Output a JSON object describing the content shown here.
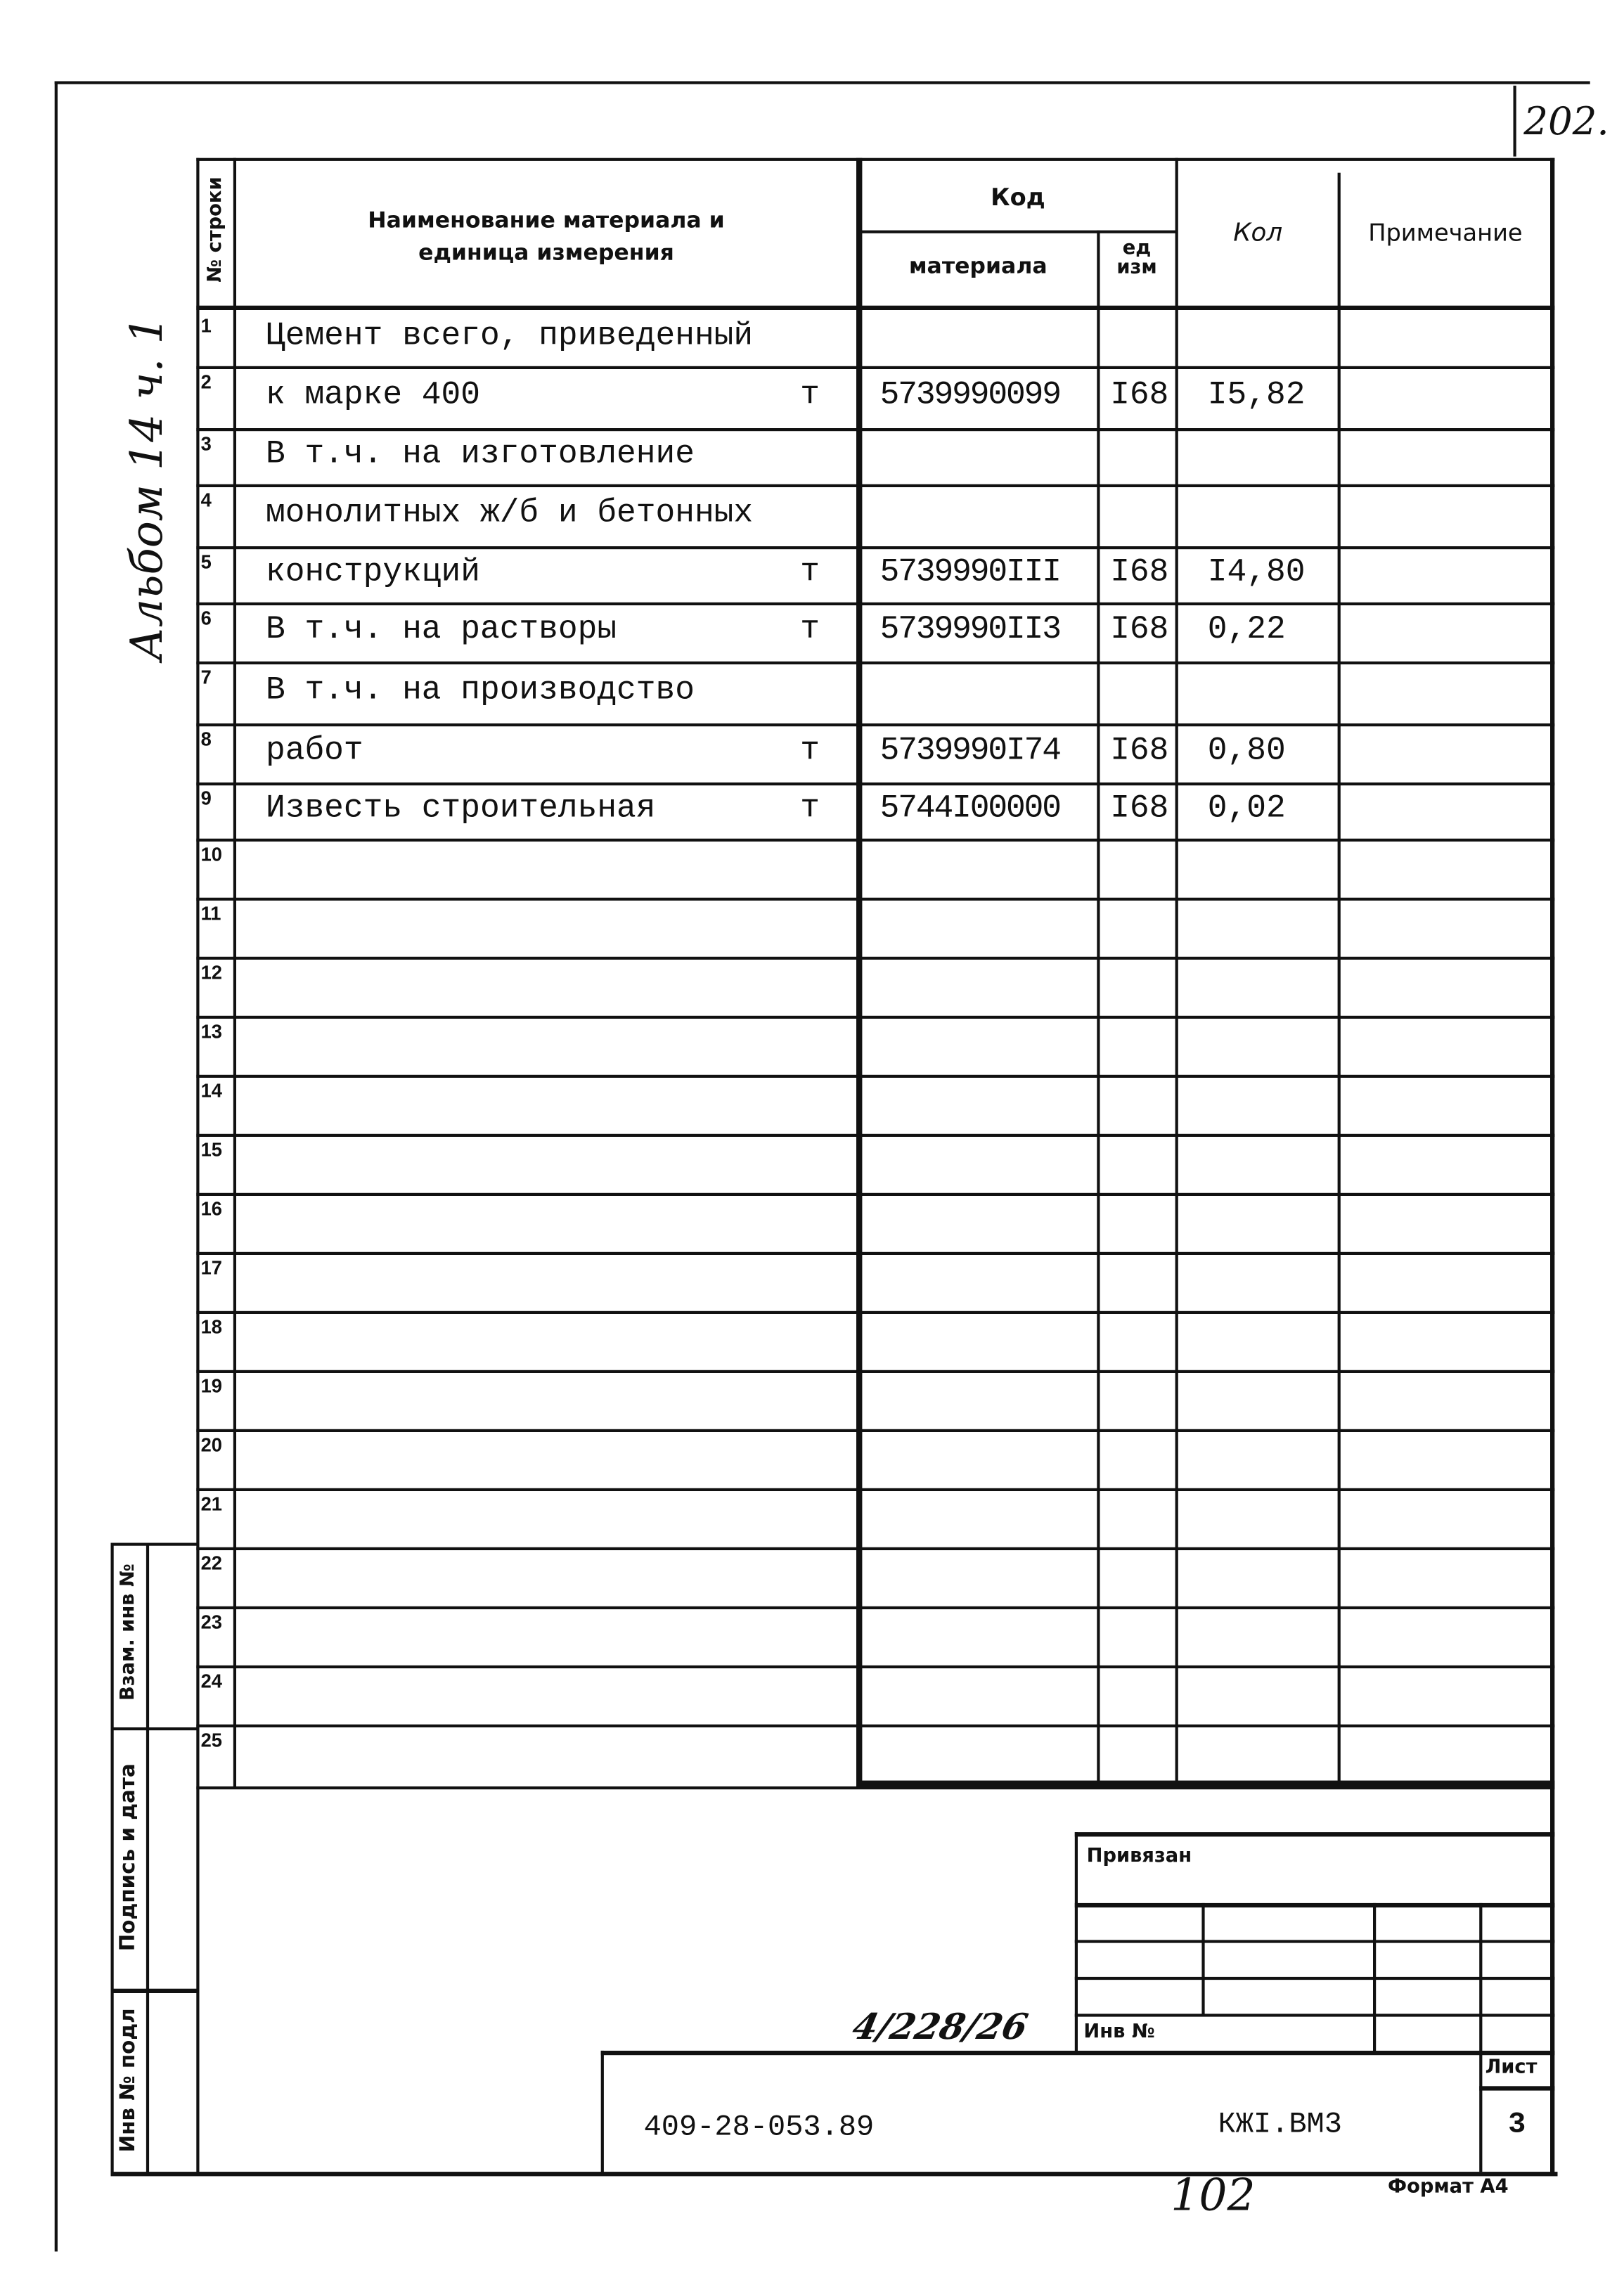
{
  "page_number": "202.",
  "side_handwriting": "Альбом 14 ч. 1",
  "header": {
    "row_no": "№ строки",
    "name": "Наименование материала и",
    "name2": "единица измерения",
    "code": "Код",
    "material": "материала",
    "unit_code": "ед изм",
    "qty": "Кол",
    "note": "Примечание"
  },
  "rows": [
    {
      "n": "1",
      "name": "Цемент всего, приведенный",
      "unit": "",
      "code": "",
      "ed": "",
      "qty": ""
    },
    {
      "n": "2",
      "name": "к марке 400",
      "unit": "т",
      "code": "5739990099",
      "ed": "I68",
      "qty": "I5,82"
    },
    {
      "n": "3",
      "name": "В т.ч. на изготовление",
      "unit": "",
      "code": "",
      "ed": "",
      "qty": ""
    },
    {
      "n": "4",
      "name": "монолитных ж/б и бетонных",
      "unit": "",
      "code": "",
      "ed": "",
      "qty": ""
    },
    {
      "n": "5",
      "name": "конструкций",
      "unit": "т",
      "code": "5739990III",
      "ed": "I68",
      "qty": "I4,80"
    },
    {
      "n": "6",
      "name": "В т.ч. на растворы",
      "unit": "т",
      "code": "5739990II3",
      "ed": "I68",
      "qty": "0,22"
    },
    {
      "n": "7",
      "name": "В т.ч. на производство",
      "unit": "",
      "code": "",
      "ed": "",
      "qty": ""
    },
    {
      "n": "8",
      "name": "работ",
      "unit": "т",
      "code": "5739990I74",
      "ed": "I68",
      "qty": "0,80"
    },
    {
      "n": "9",
      "name": "Известь строительная",
      "unit": "т",
      "code": "5744I00000",
      "ed": "I68",
      "qty": "0,02"
    },
    {
      "n": "10"
    },
    {
      "n": "11"
    },
    {
      "n": "12"
    },
    {
      "n": "13"
    },
    {
      "n": "14"
    },
    {
      "n": "15"
    },
    {
      "n": "16"
    },
    {
      "n": "17"
    },
    {
      "n": "18"
    },
    {
      "n": "19"
    },
    {
      "n": "20"
    },
    {
      "n": "21"
    },
    {
      "n": "22"
    },
    {
      "n": "23"
    },
    {
      "n": "24"
    },
    {
      "n": "25"
    }
  ],
  "side": {
    "replace_inv": "Взам. инв №",
    "signature_date": "Подпись и дата",
    "inv_orig": "Инв № подл"
  },
  "stamp": {
    "bound": "Привязан",
    "inv_no": "Инв №",
    "inv_handwritten": "4/228/26",
    "doc_code": "409-28-053.89",
    "mark": "КЖI.ВМ3",
    "sheet_label": "Лист",
    "sheet": "3",
    "handwritten_number": "102",
    "format": "Формат А4"
  }
}
